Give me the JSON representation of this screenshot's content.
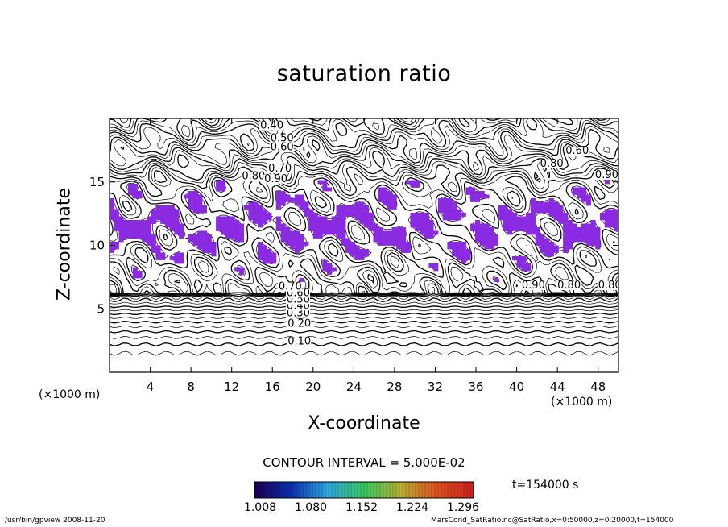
{
  "chart_data": {
    "type": "contour",
    "title": "saturation ratio",
    "xlabel": "X-coordinate",
    "ylabel": "Z-coordinate",
    "x_unit": "(×1000 m)",
    "y_unit": "(×1000 m)",
    "xlim": [
      0,
      50
    ],
    "ylim": [
      0,
      20
    ],
    "x_ticks": [
      4,
      8,
      12,
      16,
      20,
      24,
      28,
      32,
      36,
      40,
      44,
      48
    ],
    "y_ticks": [
      5,
      10,
      15
    ],
    "contour_interval": "CONTOUR INTERVAL = 5.000E-02",
    "contour_labels": [
      {
        "text": "0.10",
        "x": 17.5,
        "z": 2.2
      },
      {
        "text": "0.20",
        "x": 17.5,
        "z": 3.6
      },
      {
        "text": "0.30",
        "x": 17.4,
        "z": 4.4
      },
      {
        "text": "0.40",
        "x": 17.4,
        "z": 5.0
      },
      {
        "text": "0.50",
        "x": 17.4,
        "z": 5.5
      },
      {
        "text": "0.60",
        "x": 17.4,
        "z": 6.0
      },
      {
        "text": "0.70",
        "x": 16.6,
        "z": 6.5
      },
      {
        "text": "0.40",
        "x": 14.8,
        "z": 19.2
      },
      {
        "text": "0.50",
        "x": 15.8,
        "z": 18.2
      },
      {
        "text": "0.60",
        "x": 15.8,
        "z": 17.5
      },
      {
        "text": "0.70",
        "x": 15.6,
        "z": 15.8
      },
      {
        "text": "0.80",
        "x": 13.0,
        "z": 15.2
      },
      {
        "text": "0.90",
        "x": 15.2,
        "z": 15.0
      },
      {
        "text": "0.60",
        "x": 44.8,
        "z": 17.2
      },
      {
        "text": "0.80",
        "x": 42.3,
        "z": 16.2
      },
      {
        "text": "0.90",
        "x": 47.7,
        "z": 15.3
      },
      {
        "text": "0.80",
        "x": 48.0,
        "z": 6.6
      },
      {
        "text": "0.80",
        "x": 44.0,
        "z": 6.6
      },
      {
        "text": "0.90",
        "x": 40.5,
        "z": 6.6
      }
    ],
    "shaded_threshold": 1.0,
    "colorbar": {
      "ticks": [
        "1.008",
        "1.080",
        "1.152",
        "1.224",
        "1.296"
      ],
      "range": [
        1.008,
        1.296
      ],
      "colors": [
        "#1c0050",
        "#0a2fb0",
        "#2fa8e0",
        "#36c860",
        "#b8b030",
        "#e05020",
        "#d02020"
      ]
    },
    "shade_color": "#8a2be2",
    "time": "t=154000 s"
  },
  "footer": {
    "left": "/usr/bin/gpview   2008-11-20",
    "right": "MarsCond_SatRatio.nc@SatRatio,x=0:50000,z=0:20000,t=154000"
  }
}
